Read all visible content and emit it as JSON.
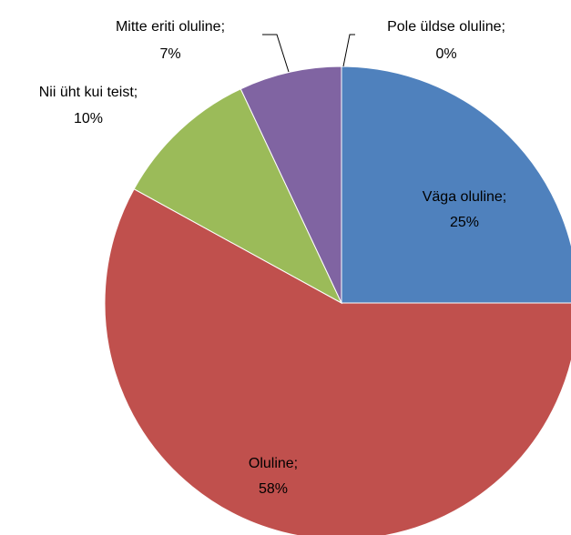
{
  "chart_data": {
    "type": "pie",
    "categories": [
      "Väga oluline;",
      "Oluline;",
      "Nii üht kui teist;",
      "Mitte eriti oluline;",
      "Pole üldse oluline;"
    ],
    "values": [
      25,
      58,
      10,
      7,
      0
    ],
    "value_labels": [
      "25%",
      "58%",
      "10%",
      "7%",
      "0%"
    ],
    "colors": [
      "#4f81bd",
      "#c0504d",
      "#9bbb59",
      "#8064a2",
      "#4bacc6"
    ]
  }
}
